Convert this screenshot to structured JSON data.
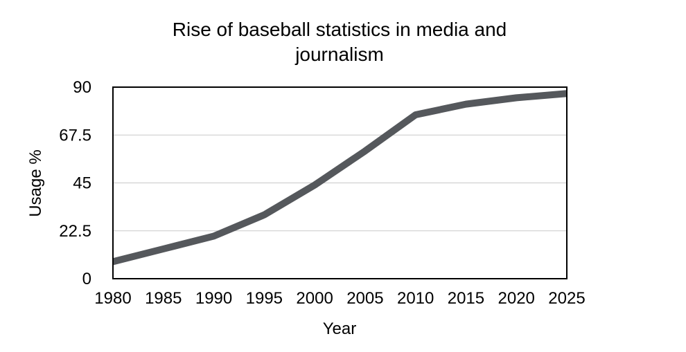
{
  "chart_data": {
    "type": "line",
    "title_lines": [
      "Rise of baseball statistics in media and",
      "journalism"
    ],
    "xlabel": "Year",
    "ylabel": "Usage %",
    "x": [
      1980,
      1985,
      1990,
      1995,
      2000,
      2005,
      2010,
      2015,
      2020,
      2025
    ],
    "x_tick_labels": [
      "1980",
      "1985",
      "1990",
      "1995",
      "2000",
      "2005",
      "2010",
      "2015",
      "2020",
      "2025"
    ],
    "y_ticks": [
      0,
      22.5,
      45,
      67.5,
      90
    ],
    "y_tick_labels": [
      "0",
      "22.5",
      "45",
      "67.5",
      "90"
    ],
    "ylim": [
      0,
      90
    ],
    "xlim": [
      1980,
      2025
    ],
    "grid": true,
    "series": [
      {
        "name": "Usage %",
        "color": "#55585c",
        "values": [
          8,
          14,
          20,
          30,
          44,
          60,
          77,
          82,
          85,
          87
        ]
      }
    ]
  }
}
